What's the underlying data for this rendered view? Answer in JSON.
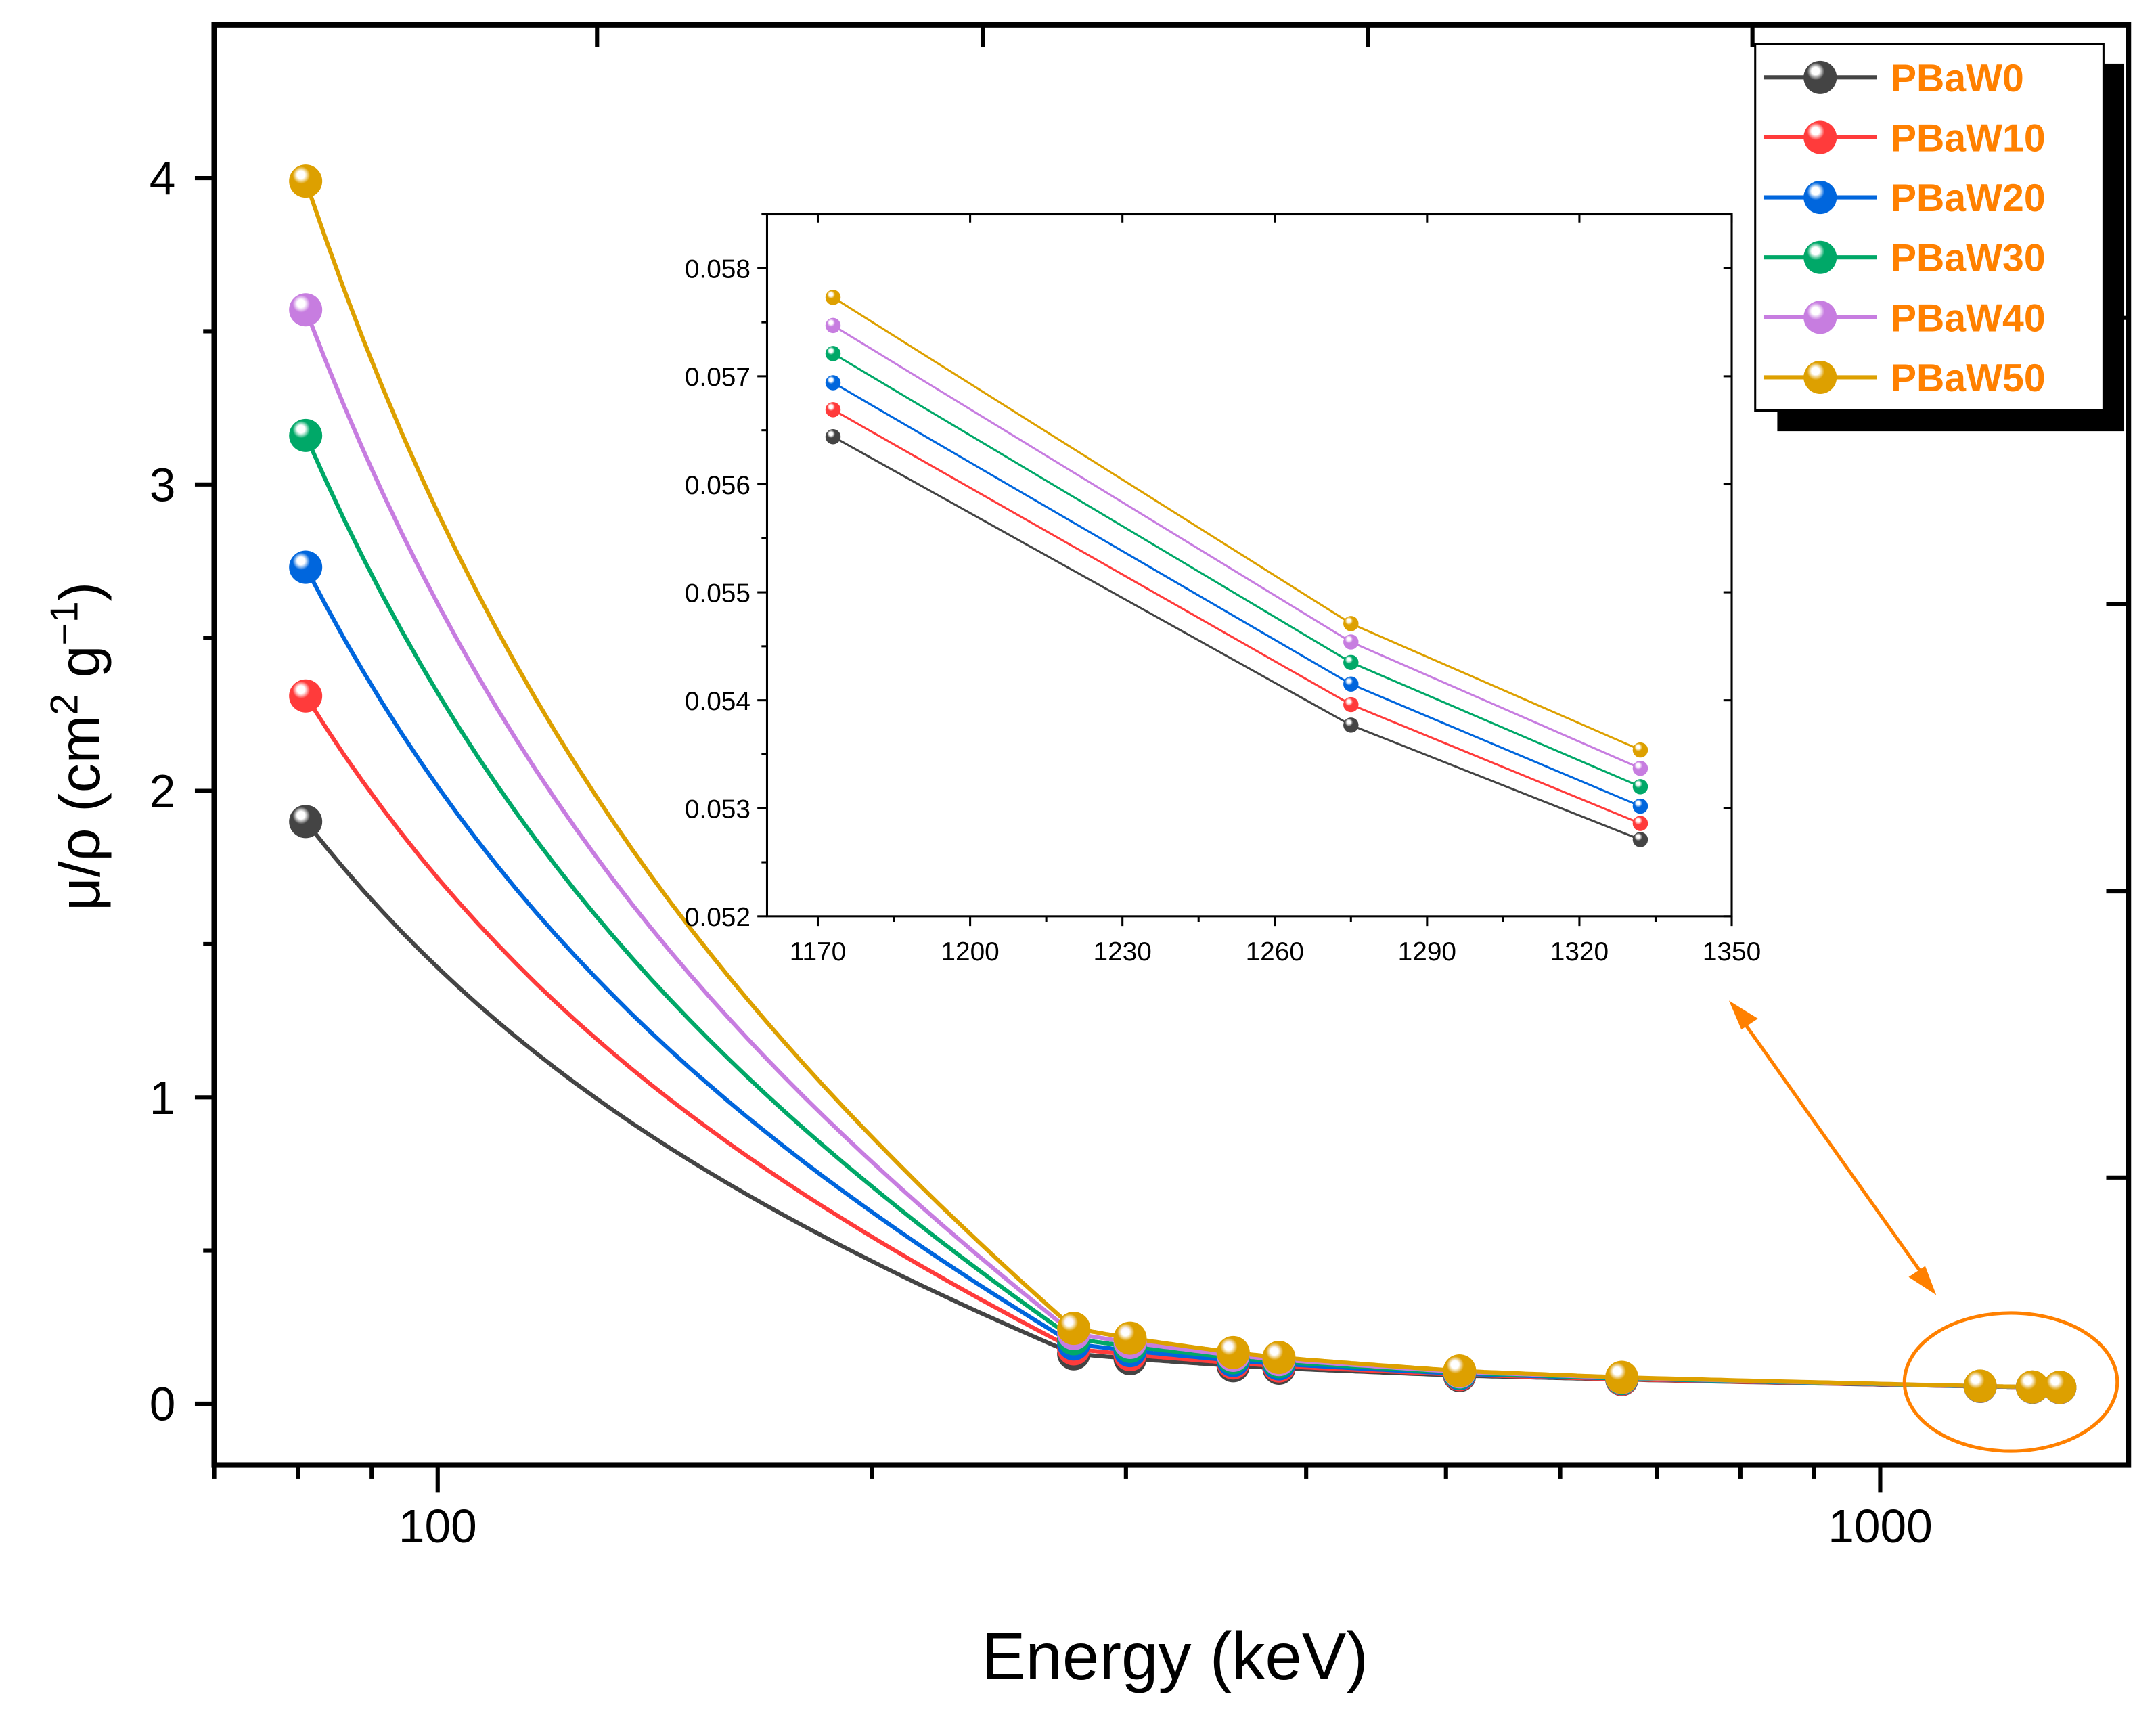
{
  "chart_data": {
    "type": "line",
    "xlabel": "Energy (keV)",
    "ylabel": {
      "main": "μ/ρ (cm",
      "sup1": "2",
      "mid": " g",
      "sup2": "−1",
      "end": ")"
    },
    "x_scale": "log",
    "xlim": [
      70,
      1486
    ],
    "ylim": [
      -0.2,
      4.5
    ],
    "x_ticks": [
      100,
      1000
    ],
    "x_tick_labels": [
      "100",
      "1000"
    ],
    "y_ticks": [
      0,
      1,
      2,
      3,
      4
    ],
    "y_tick_labels": [
      "0",
      "1",
      "2",
      "3",
      "4"
    ],
    "grid": false,
    "legend_position": "top-right",
    "x": [
      81,
      276,
      302,
      356,
      383,
      511,
      662,
      1173,
      1275,
      1332
    ],
    "series": [
      {
        "name": "PBaW0",
        "color": "#444444",
        "values": [
          1.9,
          0.163,
          0.147,
          0.124,
          0.116,
          0.092,
          0.079,
          0.05644,
          0.05377,
          0.05271
        ]
      },
      {
        "name": "PBaW10",
        "color": "#FF3B3B",
        "values": [
          2.31,
          0.179,
          0.16,
          0.133,
          0.123,
          0.095,
          0.08,
          0.05669,
          0.05396,
          0.05286
        ]
      },
      {
        "name": "PBaW20",
        "color": "#0066DD",
        "values": [
          2.73,
          0.195,
          0.173,
          0.141,
          0.13,
          0.098,
          0.082,
          0.05694,
          0.05415,
          0.05302
        ]
      },
      {
        "name": "PBaW30",
        "color": "#00A868",
        "values": [
          3.16,
          0.212,
          0.187,
          0.15,
          0.137,
          0.101,
          0.083,
          0.05721,
          0.05435,
          0.0532
        ]
      },
      {
        "name": "PBaW40",
        "color": "#C77DE0",
        "values": [
          3.57,
          0.229,
          0.2,
          0.158,
          0.144,
          0.104,
          0.085,
          0.05747,
          0.05454,
          0.05337
        ]
      },
      {
        "name": "PBaW50",
        "color": "#DDA000",
        "values": [
          3.99,
          0.246,
          0.214,
          0.167,
          0.151,
          0.107,
          0.086,
          0.05773,
          0.05471,
          0.05354
        ]
      }
    ],
    "legend_text_color": "#FF8000",
    "annotation_color": "#FF8000",
    "inset": {
      "xlim": [
        1160,
        1350
      ],
      "ylim": [
        0.052,
        0.0585
      ],
      "x_ticks": [
        1170,
        1200,
        1230,
        1260,
        1290,
        1320,
        1350
      ],
      "x_tick_labels": [
        "1170",
        "1200",
        "1230",
        "1260",
        "1290",
        "1320",
        "1350"
      ],
      "y_ticks": [
        0.052,
        0.053,
        0.054,
        0.055,
        0.056,
        0.057,
        0.058
      ],
      "y_tick_labels": [
        "0.052",
        "0.053",
        "0.054",
        "0.055",
        "0.056",
        "0.057",
        "0.058"
      ],
      "x_min_shown": 1100
    }
  }
}
